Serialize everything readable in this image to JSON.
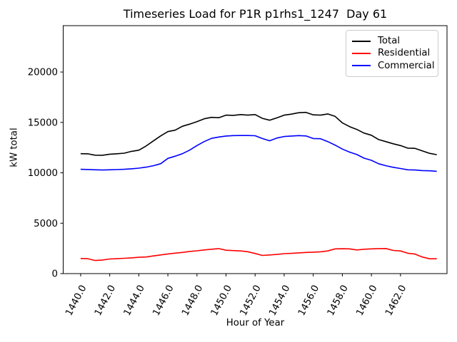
{
  "chart_data": {
    "type": "line",
    "title": "Timeseries Load for P1R p1rhs1_1247  Day 61",
    "xlabel": "Hour of Year",
    "ylabel": "kW total",
    "grid": false,
    "legend": {
      "position": "upper-right"
    },
    "xlim": [
      1438.8,
      1465.2
    ],
    "ylim": [
      0,
      24600
    ],
    "x_start": 1440,
    "x_step": 0.5,
    "xticks": {
      "values": [
        1440,
        1442,
        1444,
        1446,
        1448,
        1450,
        1452,
        1454,
        1456,
        1458,
        1460,
        1462
      ],
      "labels": [
        "1440.0",
        "1442.0",
        "1444.0",
        "1446.0",
        "1448.0",
        "1450.0",
        "1452.0",
        "1454.0",
        "1456.0",
        "1458.0",
        "1460.0",
        "1462.0"
      ]
    },
    "yticks": {
      "values": [
        0,
        5000,
        10000,
        15000,
        20000
      ],
      "labels": [
        "0",
        "5000",
        "10000",
        "15000",
        "20000"
      ]
    },
    "series": [
      {
        "name": "Total",
        "color": "#000000",
        "values": [
          11900,
          11880,
          11750,
          11740,
          11850,
          11890,
          11950,
          12130,
          12240,
          12660,
          13160,
          13660,
          14090,
          14230,
          14620,
          14830,
          15080,
          15360,
          15500,
          15470,
          15720,
          15700,
          15780,
          15720,
          15780,
          15400,
          15220,
          15450,
          15720,
          15820,
          15960,
          16000,
          15750,
          15720,
          15840,
          15600,
          14960,
          14580,
          14300,
          13940,
          13730,
          13300,
          13090,
          12880,
          12700,
          12450,
          12430,
          12180,
          11930,
          11800
        ]
      },
      {
        "name": "Residential",
        "color": "#ff0000",
        "values": [
          1500,
          1480,
          1300,
          1350,
          1450,
          1480,
          1520,
          1560,
          1620,
          1650,
          1750,
          1850,
          1950,
          2030,
          2100,
          2200,
          2260,
          2350,
          2420,
          2480,
          2320,
          2280,
          2250,
          2170,
          1990,
          1800,
          1850,
          1900,
          1980,
          2010,
          2060,
          2100,
          2130,
          2160,
          2250,
          2450,
          2470,
          2450,
          2350,
          2420,
          2450,
          2480,
          2490,
          2300,
          2250,
          2020,
          1940,
          1650,
          1470,
          1470
        ]
      },
      {
        "name": "Commercial",
        "color": "#0000ff",
        "values": [
          10350,
          10330,
          10300,
          10280,
          10300,
          10320,
          10350,
          10400,
          10460,
          10560,
          10700,
          10900,
          11430,
          11650,
          11900,
          12250,
          12700,
          13100,
          13420,
          13550,
          13650,
          13690,
          13700,
          13700,
          13680,
          13400,
          13180,
          13450,
          13600,
          13650,
          13690,
          13660,
          13400,
          13380,
          13100,
          12750,
          12360,
          12050,
          11810,
          11450,
          11240,
          10900,
          10700,
          10550,
          10430,
          10300,
          10280,
          10220,
          10200,
          10150
        ]
      }
    ]
  }
}
